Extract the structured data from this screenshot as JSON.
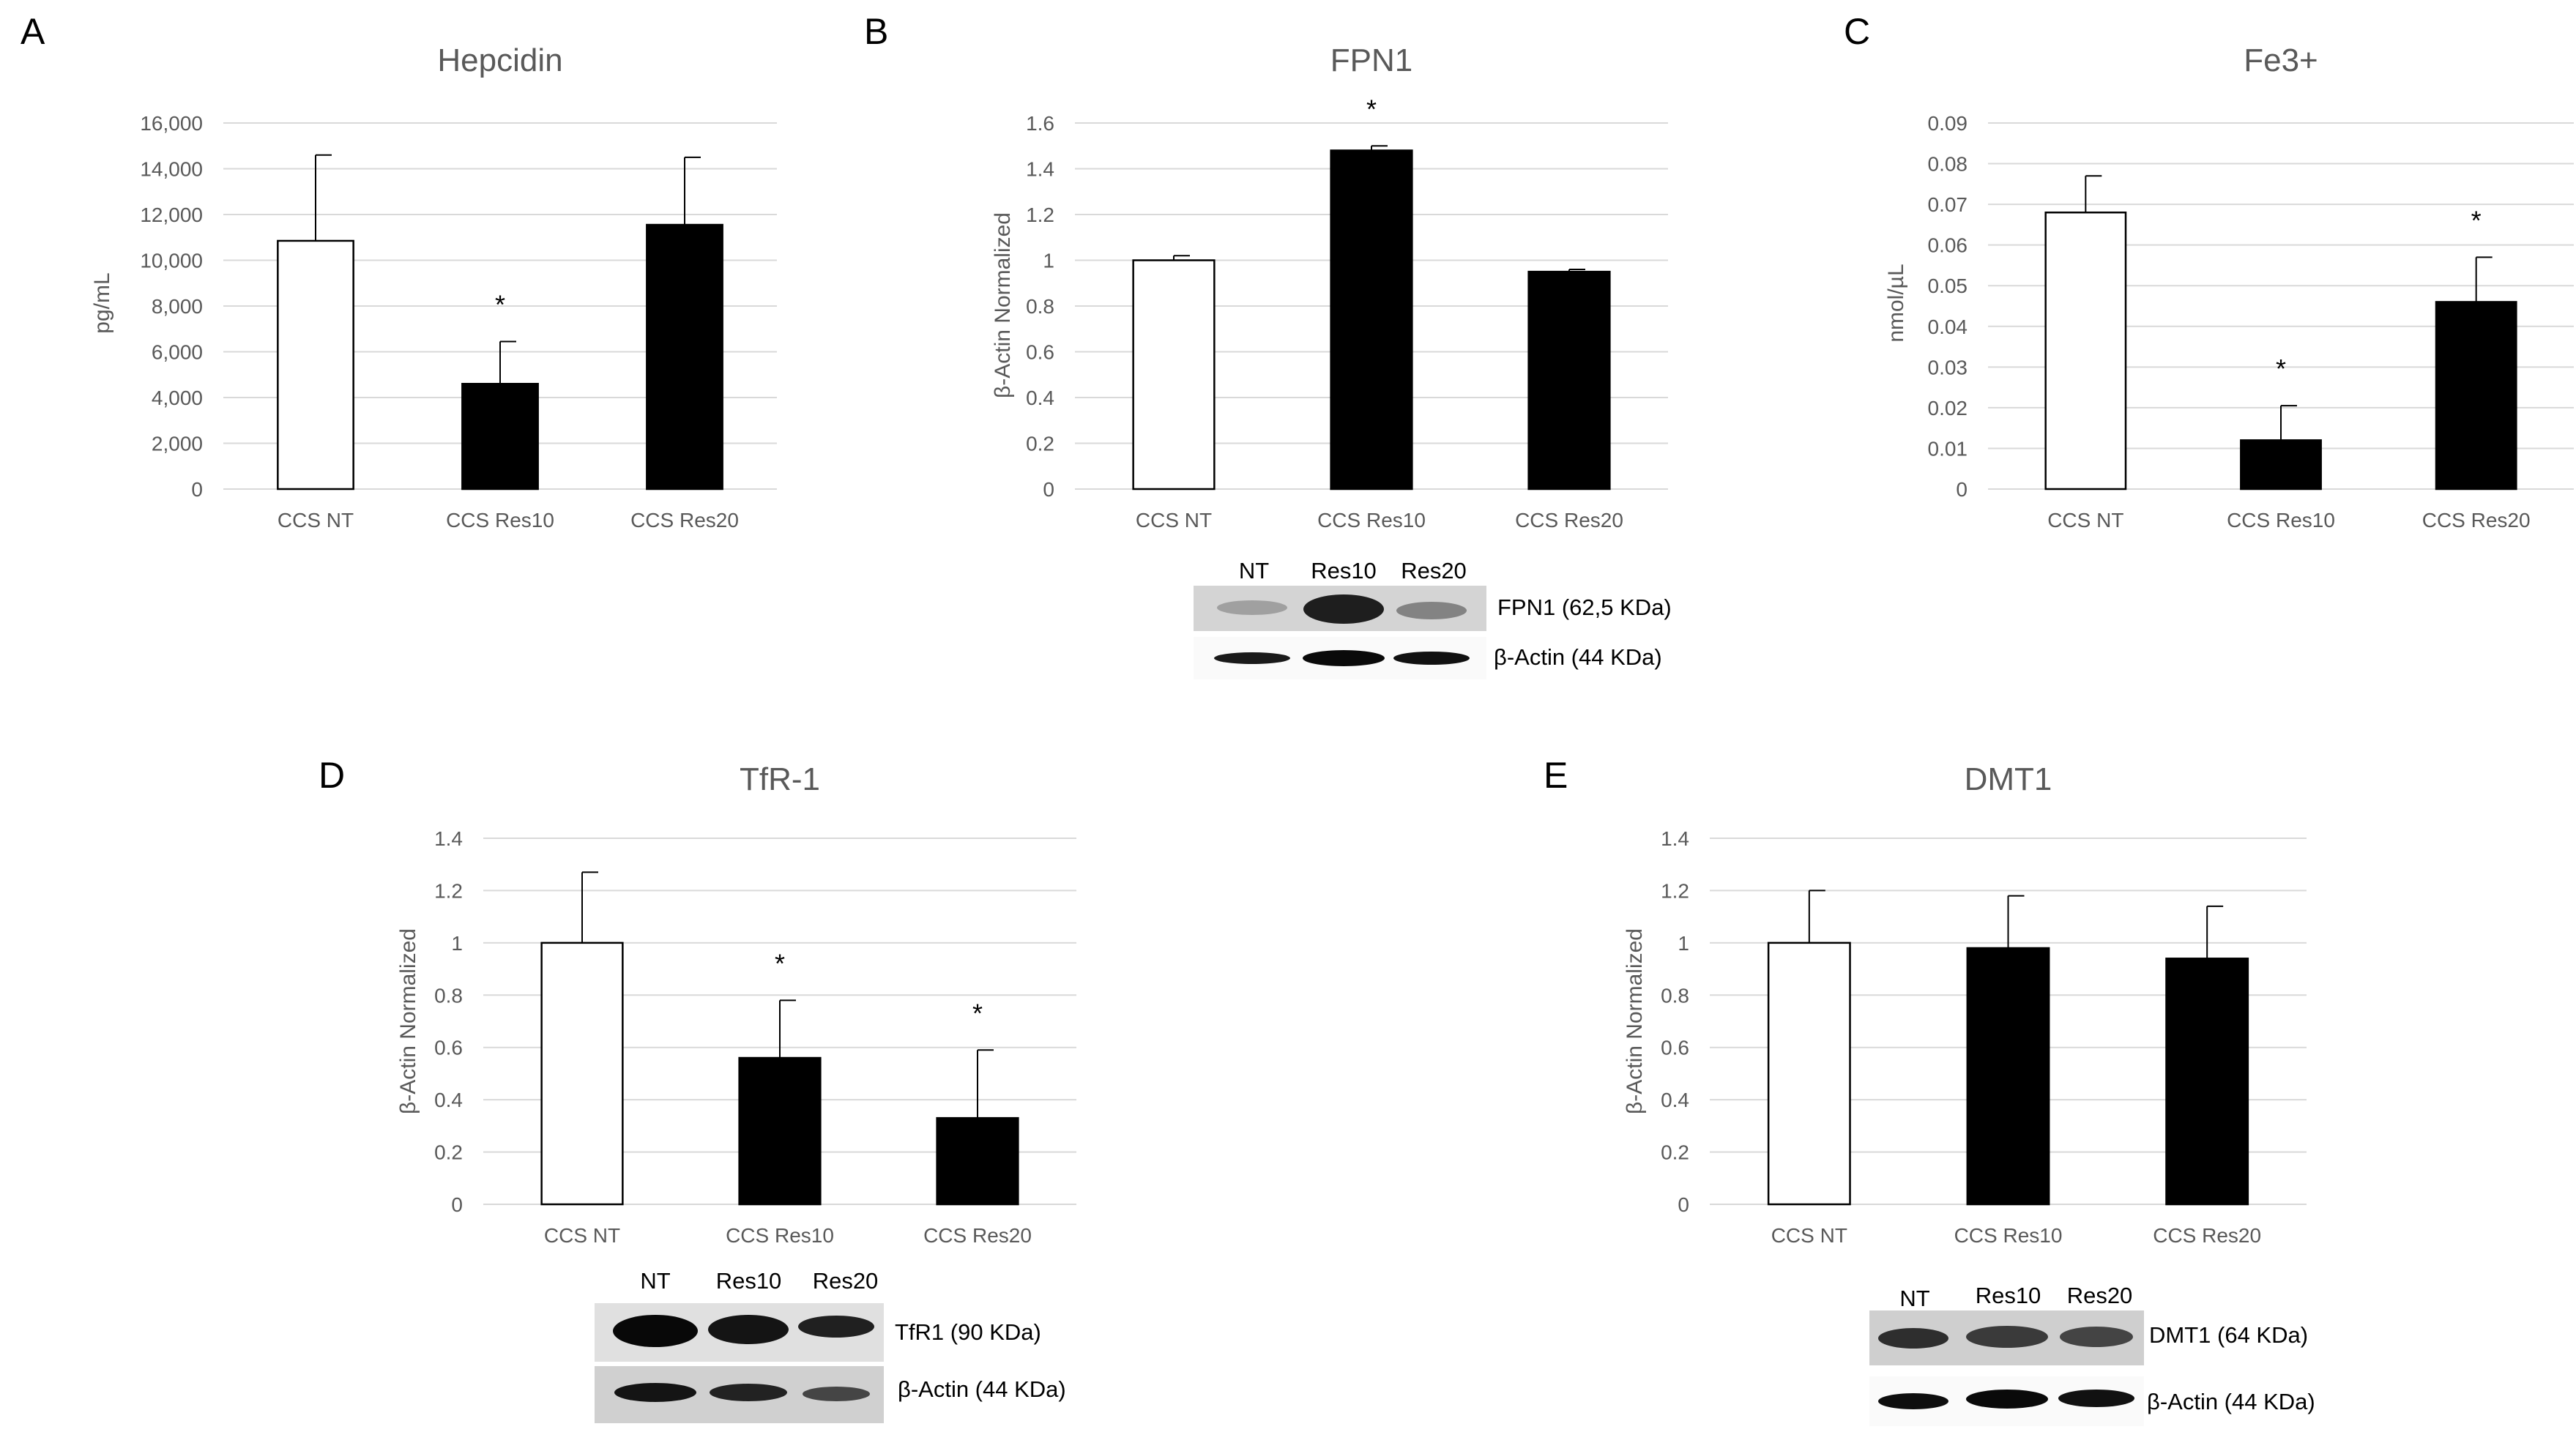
{
  "chart_data": [
    {
      "panel": "A",
      "type": "bar",
      "title": "Hepcidin",
      "ylabel": "pg/mL",
      "categories": [
        "CCS NT",
        "CCS Res10",
        "CCS Res20"
      ],
      "values": [
        10850,
        4600,
        11550
      ],
      "errors": [
        3750,
        1850,
        2950
      ],
      "significance": [
        "",
        "*",
        ""
      ],
      "bar_fill": [
        "white",
        "black",
        "black"
      ],
      "ylim": [
        0,
        16000
      ],
      "yticks": [
        "0",
        "2,000",
        "4,000",
        "6,000",
        "8,000",
        "10,000",
        "12,000",
        "14,000",
        "16,000"
      ],
      "ytick_values": [
        0,
        2000,
        4000,
        6000,
        8000,
        10000,
        12000,
        14000,
        16000
      ],
      "grid": true
    },
    {
      "panel": "B",
      "type": "bar",
      "title": "FPN1",
      "ylabel": "β-Actin Normalized",
      "categories": [
        "CCS NT",
        "CCS Res10",
        "CCS Res20"
      ],
      "values": [
        1.0,
        1.48,
        0.95
      ],
      "errors": [
        0.02,
        0.02,
        0.01
      ],
      "significance": [
        "",
        "*",
        ""
      ],
      "bar_fill": [
        "white",
        "black",
        "black"
      ],
      "ylim": [
        0,
        1.6
      ],
      "yticks": [
        "0",
        "0.2",
        "0.4",
        "0.6",
        "0.8",
        "1",
        "1.2",
        "1.4",
        "1.6"
      ],
      "ytick_values": [
        0,
        0.2,
        0.4,
        0.6,
        0.8,
        1,
        1.2,
        1.4,
        1.6
      ],
      "grid": true
    },
    {
      "panel": "C",
      "type": "bar",
      "title": "Fe3+",
      "ylabel": "nmol/µL",
      "categories": [
        "CCS NT",
        "CCS Res10",
        "CCS Res20"
      ],
      "values": [
        0.068,
        0.012,
        0.046
      ],
      "errors": [
        0.009,
        0.0085,
        0.011
      ],
      "significance": [
        "",
        "*",
        "*"
      ],
      "bar_fill": [
        "white",
        "black",
        "black"
      ],
      "ylim": [
        0,
        0.09
      ],
      "yticks": [
        "0",
        "0.01",
        "0.02",
        "0.03",
        "0.04",
        "0.05",
        "0.06",
        "0.07",
        "0.08",
        "0.09"
      ],
      "ytick_values": [
        0,
        0.01,
        0.02,
        0.03,
        0.04,
        0.05,
        0.06,
        0.07,
        0.08,
        0.09
      ],
      "grid": true
    },
    {
      "panel": "D",
      "type": "bar",
      "title": "TfR-1",
      "ylabel": "β-Actin Normalized",
      "categories": [
        "CCS NT",
        "CCS Res10",
        "CCS Res20"
      ],
      "values": [
        1.0,
        0.56,
        0.33
      ],
      "errors": [
        0.27,
        0.22,
        0.26
      ],
      "significance": [
        "",
        "*",
        "*"
      ],
      "bar_fill": [
        "white",
        "black",
        "black"
      ],
      "ylim": [
        0,
        1.4
      ],
      "yticks": [
        "0",
        "0.2",
        "0.4",
        "0.6",
        "0.8",
        "1",
        "1.2",
        "1.4"
      ],
      "ytick_values": [
        0,
        0.2,
        0.4,
        0.6,
        0.8,
        1,
        1.2,
        1.4
      ],
      "grid": true
    },
    {
      "panel": "E",
      "type": "bar",
      "title": "DMT1",
      "ylabel": "β-Actin Normalized",
      "categories": [
        "CCS NT",
        "CCS Res10",
        "CCS Res20"
      ],
      "values": [
        1.0,
        0.98,
        0.94
      ],
      "errors": [
        0.2,
        0.2,
        0.2
      ],
      "significance": [
        "",
        "",
        ""
      ],
      "bar_fill": [
        "white",
        "black",
        "black"
      ],
      "ylim": [
        0,
        1.4
      ],
      "yticks": [
        "0",
        "0.2",
        "0.4",
        "0.6",
        "0.8",
        "1",
        "1.2",
        "1.4"
      ],
      "ytick_values": [
        0,
        0.2,
        0.4,
        0.6,
        0.8,
        1,
        1.2,
        1.4
      ],
      "grid": true
    }
  ],
  "blots": [
    {
      "panel": "B",
      "lanes": [
        "NT",
        "Res10",
        "Res20"
      ],
      "bands": [
        "FPN1 (62,5 KDa)",
        "β-Actin (44 KDa)"
      ]
    },
    {
      "panel": "D",
      "lanes": [
        "NT",
        "Res10",
        "Res20"
      ],
      "bands": [
        "TfR1 (90 KDa)",
        "β-Actin (44 KDa)"
      ]
    },
    {
      "panel": "E",
      "lanes": [
        "NT",
        "Res10",
        "Res20"
      ],
      "bands": [
        "DMT1 (64 KDa)",
        "β-Actin (44 KDa)"
      ]
    }
  ],
  "colors": {
    "text": "#595959",
    "grid": "#d9d9d9",
    "bar_dark": "#000000",
    "bar_light": "#ffffff"
  }
}
